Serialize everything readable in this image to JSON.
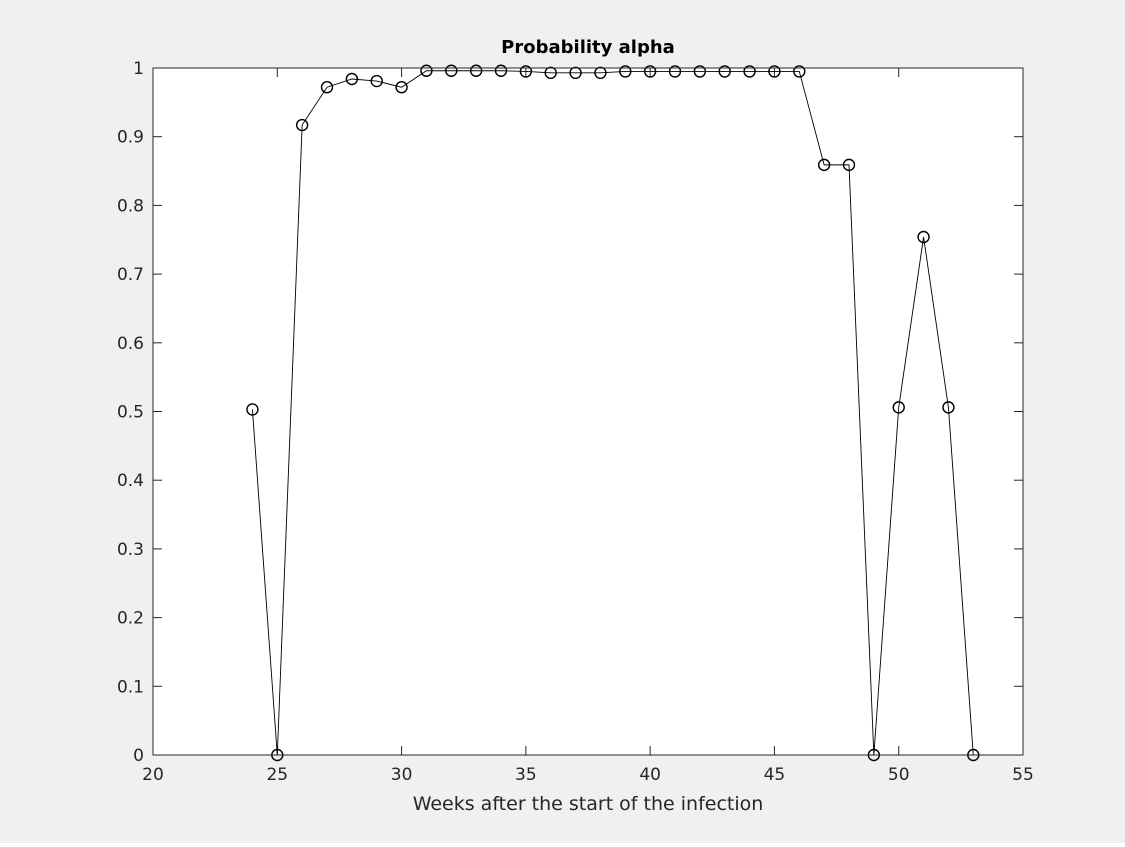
{
  "chart_data": {
    "type": "line",
    "title": "Probability alpha",
    "xlabel": "Weeks after the start of the infection",
    "ylabel": "",
    "xlim": [
      20,
      55
    ],
    "ylim": [
      0,
      1
    ],
    "x_ticks": [
      20,
      25,
      30,
      35,
      40,
      45,
      50,
      55
    ],
    "x_tick_labels": [
      "20",
      "25",
      "30",
      "35",
      "40",
      "45",
      "50",
      "55"
    ],
    "y_ticks": [
      0,
      0.1,
      0.2,
      0.3,
      0.4,
      0.5,
      0.6,
      0.7,
      0.8,
      0.9,
      1
    ],
    "y_tick_labels": [
      "0",
      "0.1",
      "0.2",
      "0.3",
      "0.4",
      "0.5",
      "0.6",
      "0.7",
      "0.8",
      "0.9",
      "1"
    ],
    "grid": false,
    "marker": "circle",
    "series": [
      {
        "x": [
          24,
          25,
          26,
          27,
          28,
          29,
          30,
          31,
          32,
          33,
          34,
          35,
          36,
          37,
          38,
          39,
          40,
          41,
          42,
          43,
          44,
          45,
          46,
          47,
          48,
          49,
          50,
          51,
          52,
          53
        ],
        "values": [
          0.503,
          0.0,
          0.917,
          0.972,
          0.984,
          0.981,
          0.972,
          0.996,
          0.996,
          0.996,
          0.996,
          0.995,
          0.993,
          0.993,
          0.993,
          0.995,
          0.995,
          0.995,
          0.995,
          0.995,
          0.995,
          0.995,
          0.995,
          0.859,
          0.859,
          0.0,
          0.506,
          0.754,
          0.506,
          0.0
        ]
      }
    ]
  },
  "colors": {
    "figure_background": "#f0f0f0",
    "axes_background": "#ffffff",
    "axes_color": "#262626",
    "line_color": "#000000"
  }
}
